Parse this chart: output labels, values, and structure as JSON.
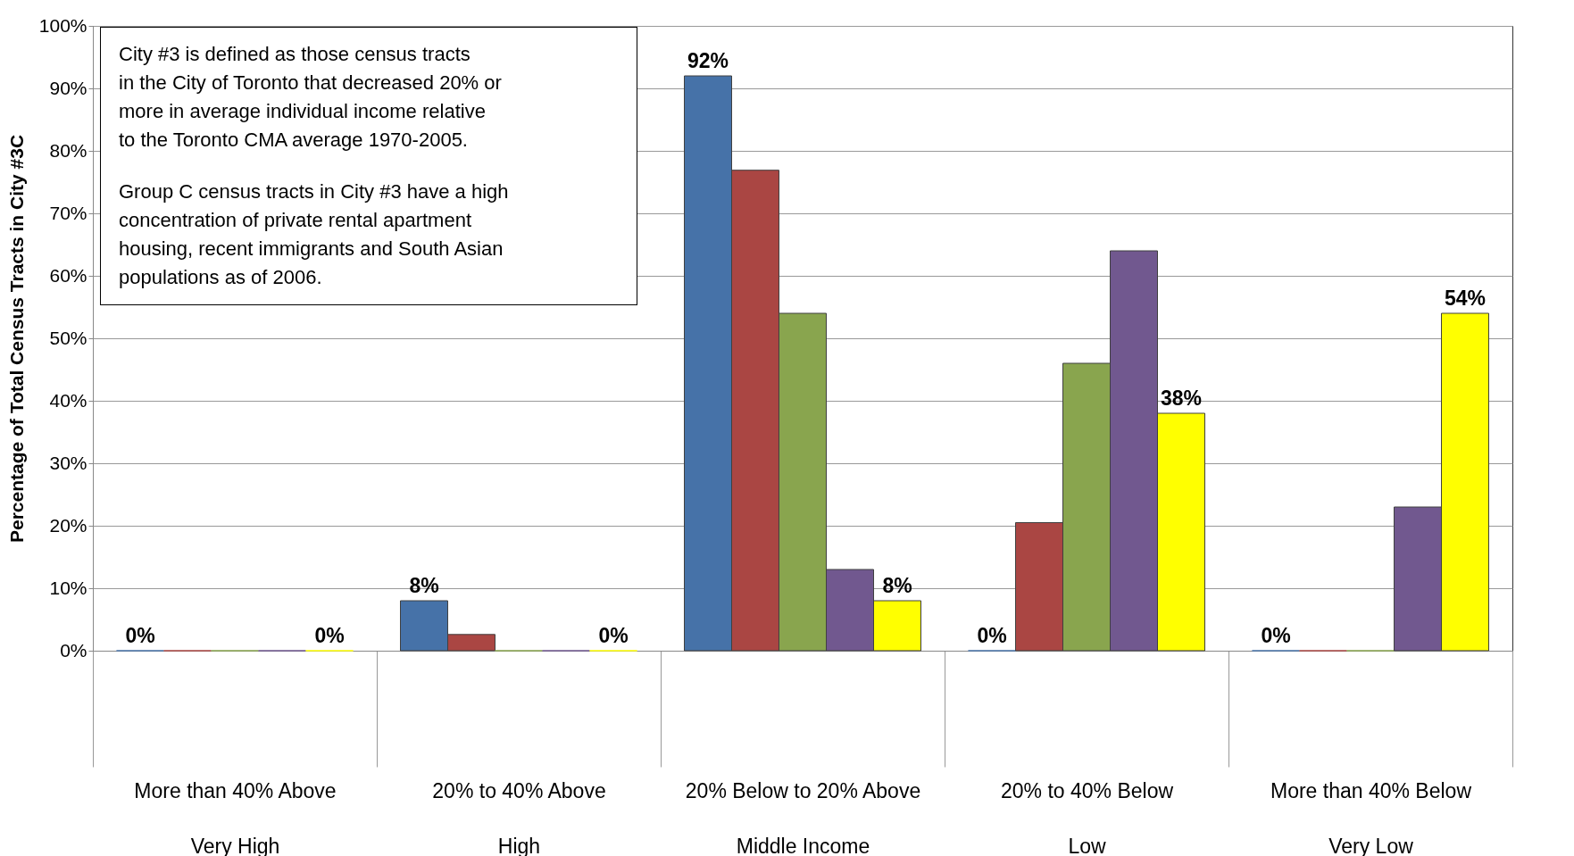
{
  "chart_data": {
    "type": "bar",
    "ylabel": "Percentage of Total Census Tracts in City #3C",
    "categories": [
      "More than 40% Above\nVery High",
      "20% to 40% Above\nHigh",
      "20% Below to 20% Above\nMiddle Income",
      "20% to 40% Below\nLow",
      "More than 40% Below\nVery Low"
    ],
    "series": [
      {
        "color": "#4672a8",
        "values": [
          0,
          8,
          92,
          0,
          0
        ],
        "value_labels": [
          "0%",
          "8%",
          "92%",
          "0%",
          "0%"
        ]
      },
      {
        "color": "#aa4643",
        "values": [
          0,
          2.6,
          76.9,
          20.5,
          0
        ]
      },
      {
        "color": "#89a54e",
        "values": [
          0,
          0,
          54,
          46,
          0
        ]
      },
      {
        "color": "#71588f",
        "values": [
          0,
          0,
          13,
          64,
          23
        ]
      },
      {
        "color": "#ffff00",
        "values": [
          0,
          0,
          8,
          38,
          54
        ],
        "value_labels": [
          "0%",
          "0%",
          "8%",
          "38%",
          "54%"
        ]
      }
    ],
    "ylim": [
      0,
      100
    ],
    "yticks": [
      {
        "value": 0,
        "label": "0%"
      },
      {
        "value": 10,
        "label": "10%"
      },
      {
        "value": 20,
        "label": "20%"
      },
      {
        "value": 30,
        "label": "30%"
      },
      {
        "value": 40,
        "label": "40%"
      },
      {
        "value": 50,
        "label": "50%"
      },
      {
        "value": 60,
        "label": "60%"
      },
      {
        "value": 70,
        "label": "70%"
      },
      {
        "value": 80,
        "label": "80%"
      },
      {
        "value": 90,
        "label": "90%"
      },
      {
        "value": 100,
        "label": "100%"
      }
    ],
    "grid": "y",
    "legend": false,
    "annotations": [
      "City #3 is defined as those census tracts\nin the City of Toronto that decreased 20% or\nmore in average individual income relative\nto the Toronto CMA average 1970-2005.",
      "Group C census tracts in City #3 have a high\nconcentration of private rental apartment\nhousing, recent immigrants and South Asian\npopulations as of 2006."
    ]
  }
}
